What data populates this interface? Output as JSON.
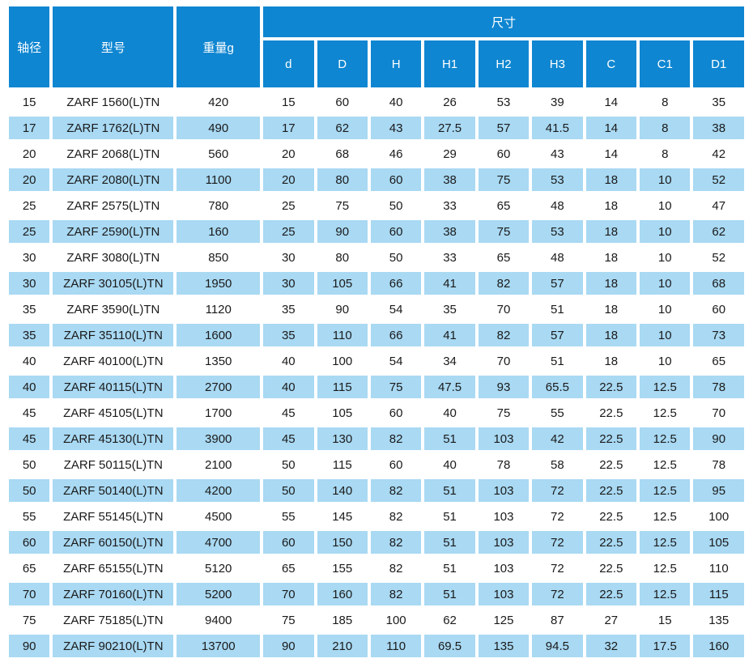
{
  "chart_data": {
    "type": "table",
    "header": {
      "shaft_diameter": "轴径",
      "model": "型号",
      "weight_g": "重量g",
      "dimensions_group": "尺寸",
      "dimension_columns": [
        "d",
        "D",
        "H",
        "H1",
        "H2",
        "H3",
        "C",
        "C1",
        "D1"
      ]
    },
    "rows": [
      [
        15,
        "ZARF 1560(L)TN",
        420,
        15,
        60,
        40,
        26,
        53,
        39,
        14,
        8,
        35
      ],
      [
        17,
        "ZARF 1762(L)TN",
        490,
        17,
        62,
        43,
        27.5,
        57,
        41.5,
        14,
        8,
        38
      ],
      [
        20,
        "ZARF 2068(L)TN",
        560,
        20,
        68,
        46,
        29,
        60,
        43,
        14,
        8,
        42
      ],
      [
        20,
        "ZARF 2080(L)TN",
        1100,
        20,
        80,
        60,
        38,
        75,
        53,
        18,
        10,
        52
      ],
      [
        25,
        "ZARF 2575(L)TN",
        780,
        25,
        75,
        50,
        33,
        65,
        48,
        18,
        10,
        47
      ],
      [
        25,
        "ZARF 2590(L)TN",
        160,
        25,
        90,
        60,
        38,
        75,
        53,
        18,
        10,
        62
      ],
      [
        30,
        "ZARF 3080(L)TN",
        850,
        30,
        80,
        50,
        33,
        65,
        48,
        18,
        10,
        52
      ],
      [
        30,
        "ZARF 30105(L)TN",
        1950,
        30,
        105,
        66,
        41,
        82,
        57,
        18,
        10,
        68
      ],
      [
        35,
        "ZARF 3590(L)TN",
        1120,
        35,
        90,
        54,
        35,
        70,
        51,
        18,
        10,
        60
      ],
      [
        35,
        "ZARF 35110(L)TN",
        1600,
        35,
        110,
        66,
        41,
        82,
        57,
        18,
        10,
        73
      ],
      [
        40,
        "ZARF 40100(L)TN",
        1350,
        40,
        100,
        54,
        34,
        70,
        51,
        18,
        10,
        65
      ],
      [
        40,
        "ZARF 40115(L)TN",
        2700,
        40,
        115,
        75,
        47.5,
        93,
        65.5,
        22.5,
        12.5,
        78
      ],
      [
        45,
        "ZARF 45105(L)TN",
        1700,
        45,
        105,
        60,
        40,
        75,
        55,
        22.5,
        12.5,
        70
      ],
      [
        45,
        "ZARF 45130(L)TN",
        3900,
        45,
        130,
        82,
        51,
        103,
        42,
        22.5,
        12.5,
        90
      ],
      [
        50,
        "ZARF 50115(L)TN",
        2100,
        50,
        115,
        60,
        40,
        78,
        58,
        22.5,
        12.5,
        78
      ],
      [
        50,
        "ZARF 50140(L)TN",
        4200,
        50,
        140,
        82,
        51,
        103,
        72,
        22.5,
        12.5,
        95
      ],
      [
        55,
        "ZARF 55145(L)TN",
        4500,
        55,
        145,
        82,
        51,
        103,
        72,
        22.5,
        12.5,
        100
      ],
      [
        60,
        "ZARF 60150(L)TN",
        4700,
        60,
        150,
        82,
        51,
        103,
        72,
        22.5,
        12.5,
        105
      ],
      [
        65,
        "ZARF 65155(L)TN",
        5120,
        65,
        155,
        82,
        51,
        103,
        72,
        22.5,
        12.5,
        110
      ],
      [
        70,
        "ZARF 70160(L)TN",
        5200,
        70,
        160,
        82,
        51,
        103,
        72,
        22.5,
        12.5,
        115
      ],
      [
        75,
        "ZARF 75185(L)TN",
        9400,
        75,
        185,
        100,
        62,
        125,
        87,
        27,
        15,
        135
      ],
      [
        90,
        "ZARF 90210(L)TN",
        13700,
        90,
        210,
        110,
        69.5,
        135,
        94.5,
        32,
        17.5,
        160
      ]
    ]
  },
  "colors": {
    "header_bg": "#0f86d1",
    "header_text": "#ffffff",
    "row_bg": "#ffffff",
    "alt_row_bg": "#a9d9f3",
    "text": "#1a1a1a"
  }
}
